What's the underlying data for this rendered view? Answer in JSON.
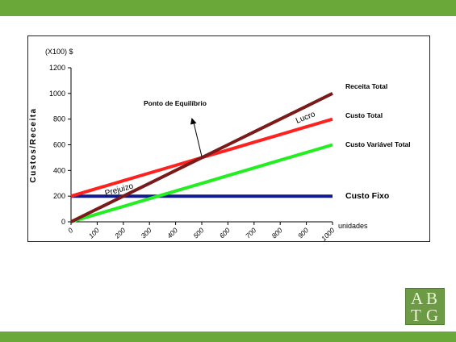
{
  "colors": {
    "band": "#6aa83a",
    "receita": "#7a1a1a",
    "custo_total": "#ff2020",
    "custo_variavel": "#22ee22",
    "custo_fixo": "#101a8a",
    "logo": "#6d9b45"
  },
  "logo": {
    "letters": [
      "A",
      "B",
      "T",
      "G"
    ]
  },
  "chart_data": {
    "type": "line",
    "unit_label": "(X100) $",
    "ylabel": "Custos/Receita",
    "xlabel": "unidades",
    "x": [
      0,
      100,
      200,
      300,
      400,
      500,
      600,
      700,
      800,
      900,
      1000
    ],
    "xticks": [
      "0",
      "100",
      "200",
      "300",
      "400",
      "500",
      "600",
      "700",
      "800",
      "900",
      "1000"
    ],
    "yticks": [
      "0",
      "200",
      "400",
      "600",
      "800",
      "1000",
      "1200"
    ],
    "xlim": [
      0,
      1000
    ],
    "ylim": [
      0,
      1200
    ],
    "grid": false,
    "series": [
      {
        "name": "Receita Total",
        "color": "#7a1a1a",
        "values": [
          0,
          100,
          200,
          300,
          400,
          500,
          600,
          700,
          800,
          900,
          1000
        ]
      },
      {
        "name": "Custo Total",
        "color": "#ff2020",
        "values": [
          200,
          260,
          320,
          380,
          440,
          500,
          560,
          620,
          680,
          740,
          800
        ]
      },
      {
        "name": "Custo Variável Total",
        "color": "#22ee22",
        "values": [
          0,
          60,
          120,
          180,
          240,
          300,
          360,
          420,
          480,
          540,
          600
        ]
      },
      {
        "name": "Custo Fixo",
        "color": "#101a8a",
        "values": [
          200,
          200,
          200,
          200,
          200,
          200,
          200,
          200,
          200,
          200,
          200
        ]
      }
    ],
    "annotations": {
      "break_even": {
        "text": "Ponto de Equilíbrio",
        "x": 500,
        "y": 500
      },
      "lucro": "Lucro",
      "prejuizo": "Prejuizo"
    }
  }
}
